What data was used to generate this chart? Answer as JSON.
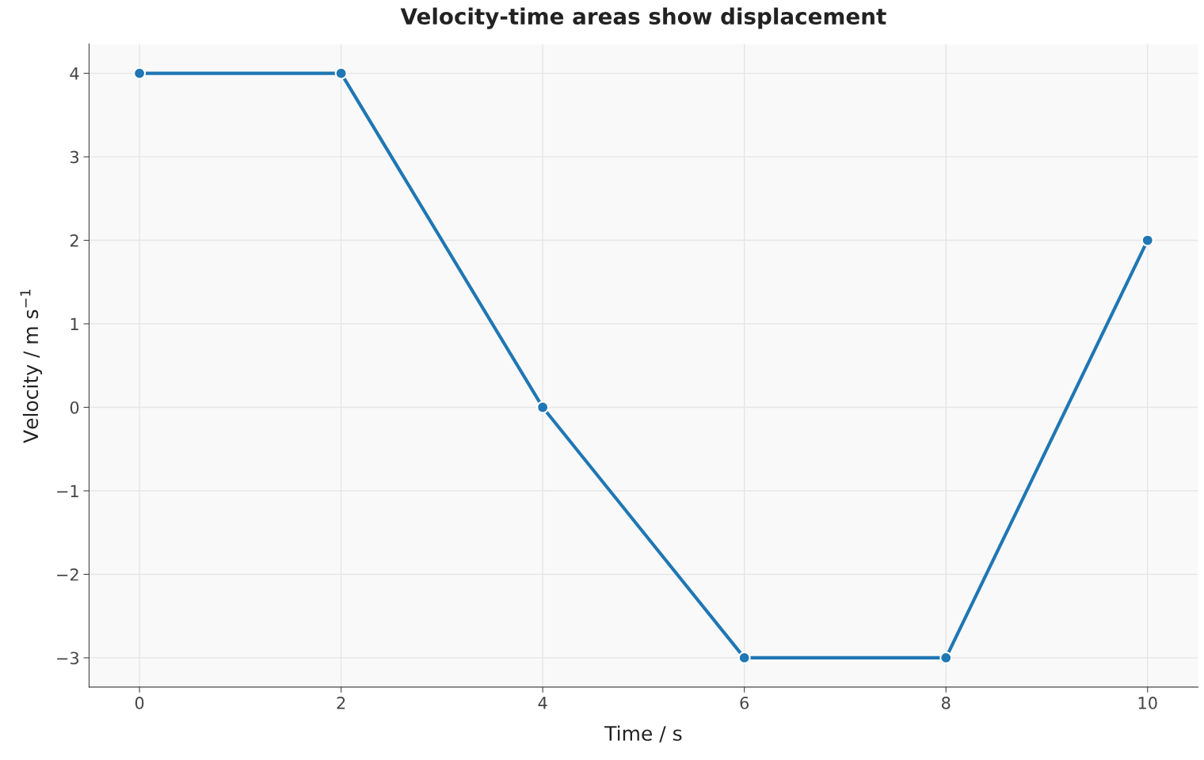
{
  "chart_data": {
    "type": "line",
    "title": "Velocity-time areas show displacement",
    "xlabel": "Time / s",
    "ylabel": "Velocity / m s$^{−1}$",
    "x": [
      0,
      2,
      4,
      6,
      8,
      10
    ],
    "series": [
      {
        "color": "#1f77b4",
        "values": [
          4,
          4,
          0,
          -3,
          -3,
          2
        ]
      }
    ],
    "xlim": [
      -0.5,
      10.5
    ],
    "ylim": [
      -3.35,
      4.35
    ],
    "xticks": [
      0,
      2,
      4,
      6,
      8,
      10
    ],
    "yticks": [
      -3,
      -2,
      -1,
      0,
      1,
      2,
      3,
      4
    ],
    "grid": true,
    "marker": "circle",
    "line_style": "solid"
  }
}
